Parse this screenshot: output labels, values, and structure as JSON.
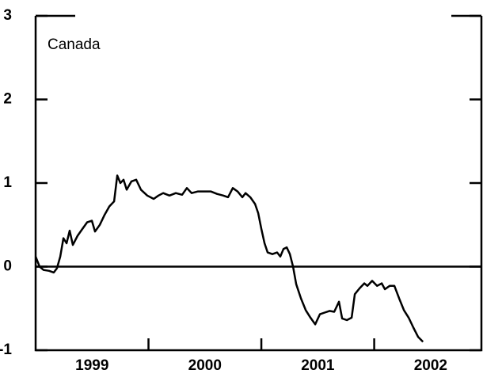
{
  "chart_data": {
    "type": "line",
    "annotation": "Canada",
    "color": "#000000",
    "xlim": [
      1999,
      2002.95
    ],
    "ylim": [
      -1,
      3
    ],
    "yticks": [
      -1,
      0,
      1,
      2,
      3
    ],
    "xtick_marks": [
      2000,
      2001,
      2002
    ],
    "xlabels": [
      {
        "value": 1999.5,
        "label": "1999"
      },
      {
        "value": 2000.5,
        "label": "2000"
      },
      {
        "value": 2001.5,
        "label": "2001"
      },
      {
        "value": 2002.5,
        "label": "2002"
      }
    ],
    "reference_line": 0,
    "x": [
      1999.0,
      1999.035,
      1999.07,
      1999.119,
      1999.161,
      1999.189,
      1999.218,
      1999.246,
      1999.274,
      1999.302,
      1999.33,
      1999.372,
      1999.414,
      1999.456,
      1999.498,
      1999.526,
      1999.568,
      1999.611,
      1999.653,
      1999.695,
      1999.723,
      1999.751,
      1999.779,
      1999.807,
      1999.849,
      1999.891,
      1999.933,
      1999.989,
      2000.046,
      2000.088,
      2000.13,
      2000.186,
      2000.242,
      2000.298,
      2000.34,
      2000.382,
      2000.439,
      2000.495,
      2000.551,
      2000.607,
      2000.663,
      2000.705,
      2000.747,
      2000.789,
      2000.832,
      2000.86,
      2000.902,
      2000.944,
      2000.972,
      2001.0,
      2001.028,
      2001.056,
      2001.098,
      2001.14,
      2001.168,
      2001.196,
      2001.225,
      2001.253,
      2001.281,
      2001.309,
      2001.351,
      2001.393,
      2001.435,
      2001.477,
      2001.519,
      2001.561,
      2001.604,
      2001.646,
      2001.688,
      2001.716,
      2001.758,
      2001.8,
      2001.828,
      2001.87,
      2001.912,
      2001.94,
      2001.982,
      2002.025,
      2002.067,
      2002.095,
      2002.137,
      2002.179,
      2002.221,
      2002.263,
      2002.305,
      2002.347,
      2002.389,
      2002.432
    ],
    "values": [
      0.12,
      0,
      -0.04,
      -0.05,
      -0.07,
      -0.02,
      0.12,
      0.34,
      0.28,
      0.43,
      0.26,
      0.37,
      0.45,
      0.53,
      0.55,
      0.42,
      0.5,
      0.62,
      0.72,
      0.78,
      1.09,
      1.0,
      1.04,
      0.92,
      1.02,
      1.04,
      0.92,
      0.85,
      0.81,
      0.85,
      0.88,
      0.85,
      0.88,
      0.86,
      0.94,
      0.88,
      0.9,
      0.9,
      0.9,
      0.87,
      0.85,
      0.83,
      0.94,
      0.9,
      0.83,
      0.88,
      0.83,
      0.75,
      0.64,
      0.45,
      0.28,
      0.17,
      0.15,
      0.17,
      0.12,
      0.21,
      0.23,
      0.15,
      0,
      -0.21,
      -0.38,
      -0.52,
      -0.61,
      -0.69,
      -0.57,
      -0.55,
      -0.53,
      -0.54,
      -0.42,
      -0.62,
      -0.64,
      -0.61,
      -0.33,
      -0.26,
      -0.2,
      -0.23,
      -0.17,
      -0.23,
      -0.2,
      -0.27,
      -0.23,
      -0.23,
      -0.38,
      -0.52,
      -0.61,
      -0.73,
      -0.84,
      -0.9
    ]
  }
}
